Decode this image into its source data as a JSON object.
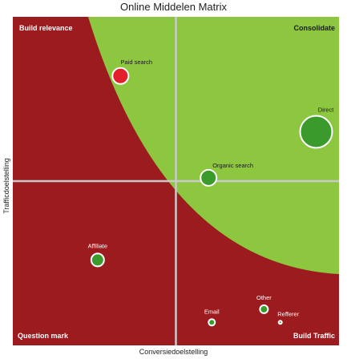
{
  "chart_data": {
    "type": "scatter",
    "title": "Online Middelen Matrix",
    "xlabel": "Conversiedoelstelling",
    "ylabel": "Trafficdoelstelling",
    "xlim": [
      0,
      100
    ],
    "ylim": [
      0,
      100
    ],
    "grid": true,
    "colors": {
      "background": "#9b1b1f",
      "curve_region": "#8dc63f",
      "gridline": "#c9c9c9",
      "point_green": "#3a9a2c",
      "point_red": "#e2202b",
      "point_outline": "#ffffff"
    },
    "quadrants": {
      "top_left": "Build relevance",
      "top_right": "Consolidate",
      "bottom_left": "Question mark",
      "bottom_right": "Build Traffic"
    },
    "points": [
      {
        "label": "Paid search",
        "x": 33,
        "y": 82,
        "size": 10,
        "color": "red"
      },
      {
        "label": "Direct",
        "x": 93,
        "y": 65,
        "size": 20,
        "color": "green"
      },
      {
        "label": "Organic search",
        "x": 60,
        "y": 51,
        "size": 10,
        "color": "green"
      },
      {
        "label": "Affiliate",
        "x": 26,
        "y": 26,
        "size": 8,
        "color": "green"
      },
      {
        "label": "Other",
        "x": 77,
        "y": 11,
        "size": 5,
        "color": "green"
      },
      {
        "label": "Email",
        "x": 61,
        "y": 7,
        "size": 4,
        "color": "green"
      },
      {
        "label": "Refferer",
        "x": 82,
        "y": 7,
        "size": 2,
        "color": "green"
      }
    ]
  }
}
